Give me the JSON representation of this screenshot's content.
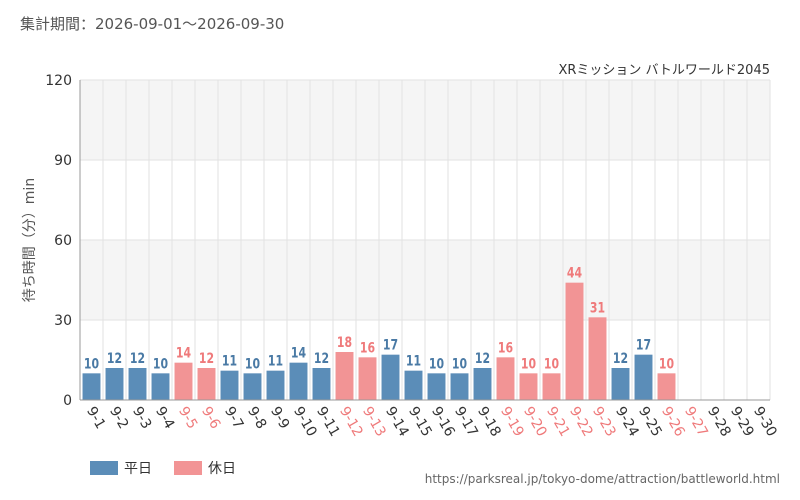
{
  "header": {
    "period_label": "集計期間：2026-09-01～2026-09-30"
  },
  "footer": {
    "url": "https://parksreal.jp/tokyo-dome/attraction/battleworld.html"
  },
  "colors": {
    "weekday": "#5b8db8",
    "holiday": "#f29495",
    "weekday_label": "#4a7aa5",
    "holiday_label": "#ef7a7b",
    "band": "#f5f5f5",
    "grid": "#e2e2e2",
    "axis_text": "#333333"
  },
  "chart_data": {
    "type": "bar",
    "title": "XRミッション バトルワールド2045",
    "ylabel": "待ち時間（分）min",
    "xlabel": "",
    "ylim": [
      0,
      120
    ],
    "yticks": [
      0,
      30,
      60,
      90,
      120
    ],
    "grid": true,
    "legend_placement": "bottom-left",
    "categories": [
      "9-1",
      "9-2",
      "9-3",
      "9-4",
      "9-5",
      "9-6",
      "9-7",
      "9-8",
      "9-9",
      "9-10",
      "9-11",
      "9-12",
      "9-13",
      "9-14",
      "9-15",
      "9-16",
      "9-17",
      "9-18",
      "9-19",
      "9-20",
      "9-21",
      "9-22",
      "9-23",
      "9-24",
      "9-25",
      "9-26",
      "9-27",
      "9-28",
      "9-29",
      "9-30"
    ],
    "values": [
      10,
      12,
      12,
      10,
      14,
      12,
      11,
      10,
      11,
      14,
      12,
      18,
      16,
      17,
      11,
      10,
      10,
      12,
      16,
      10,
      10,
      44,
      31,
      12,
      17,
      10,
      null,
      null,
      null,
      null
    ],
    "day_type": [
      "平日",
      "平日",
      "平日",
      "平日",
      "休日",
      "休日",
      "平日",
      "平日",
      "平日",
      "平日",
      "平日",
      "休日",
      "休日",
      "平日",
      "平日",
      "平日",
      "平日",
      "平日",
      "休日",
      "休日",
      "休日",
      "休日",
      "休日",
      "平日",
      "平日",
      "休日",
      "休日",
      "平日",
      "平日",
      "平日"
    ],
    "legend": [
      {
        "name": "平日",
        "key": "weekday"
      },
      {
        "name": "休日",
        "key": "holiday"
      }
    ]
  }
}
